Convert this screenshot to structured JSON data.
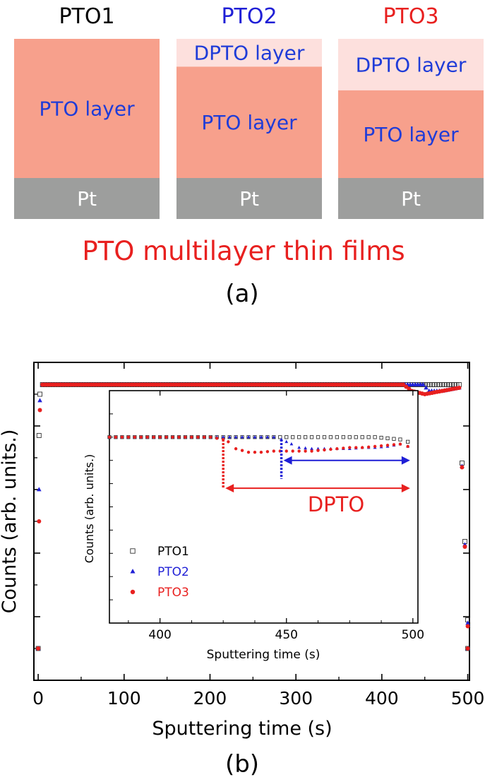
{
  "panel_a": {
    "samples": [
      {
        "title": "PTO1",
        "title_color": "#000000",
        "dpto_label": "",
        "pto_label": "PTO layer",
        "pt_label": "Pt",
        "dpto_fraction": 0.0
      },
      {
        "title": "PTO2",
        "title_color": "#1f1fd6",
        "dpto_label": "DPTO layer",
        "pto_label": "PTO layer",
        "pt_label": "Pt",
        "dpto_fraction": 0.2
      },
      {
        "title": "PTO3",
        "title_color": "#e8201f",
        "dpto_label": "DPTO layer",
        "pto_label": "PTO layer",
        "pt_label": "Pt",
        "dpto_fraction": 0.37
      }
    ],
    "caption": "PTO multilayer thin films",
    "label": "(a)",
    "colors": {
      "pto": "#f7a08c",
      "dpto": "#fde0dd",
      "pt": "#9d9e9d",
      "label_blue": "#1f3cd8",
      "caption_red": "#e8201f"
    }
  },
  "panel_b": {
    "label": "(b)",
    "legend": [
      {
        "name": "PTO1",
        "color": "#333333",
        "text_color": "#000000",
        "marker": "open-square"
      },
      {
        "name": "PTO2",
        "color": "#1f1fd6",
        "text_color": "#1f1fd6",
        "marker": "triangle"
      },
      {
        "name": "PTO3",
        "color": "#e8201f",
        "text_color": "#e8201f",
        "marker": "circle"
      }
    ],
    "annotation": {
      "text": "DPTO",
      "color": "#e8201f",
      "red_arrow_x": [
        425,
        500
      ],
      "blue_arrow_x": [
        448,
        500
      ]
    }
  },
  "chart_data": [
    {
      "type": "scatter",
      "title": "",
      "xlabel": "Sputtering time (s)",
      "ylabel": "Counts (arb. units.)",
      "xlim": [
        -5,
        502
      ],
      "ylim": [
        0,
        100
      ],
      "xticks": [
        "0",
        "100",
        "200",
        "300",
        "400",
        "500"
      ],
      "series": [
        {
          "name": "PTO1",
          "x": [
            0,
            1,
            2,
            5,
            50,
            100,
            200,
            300,
            400,
            430,
            450,
            470,
            490,
            500,
            500
          ],
          "y": [
            10,
            77,
            90,
            93,
            93,
            93,
            93,
            93,
            93,
            93,
            93,
            93,
            93,
            19,
            10
          ]
        },
        {
          "name": "PTO2",
          "x": [
            0,
            1,
            2,
            5,
            50,
            100,
            200,
            300,
            400,
            430,
            448,
            455,
            470,
            490,
            500,
            500
          ],
          "y": [
            10,
            60,
            88,
            93,
            93,
            93,
            93,
            93,
            93,
            93,
            93,
            91,
            91,
            92,
            18,
            10
          ]
        },
        {
          "name": "PTO3",
          "x": [
            0,
            1,
            2,
            5,
            50,
            100,
            200,
            300,
            400,
            420,
            425,
            435,
            450,
            470,
            490,
            500,
            500
          ],
          "y": [
            10,
            50,
            85,
            93,
            93,
            93,
            93,
            93,
            93,
            93,
            93,
            91,
            90,
            91,
            92,
            17,
            10
          ]
        }
      ]
    },
    {
      "type": "scatter",
      "title": "",
      "xlabel": "Sputtering time (s)",
      "ylabel": "Counts (arb. units.)",
      "xlim": [
        380,
        502
      ],
      "ylim": [
        0,
        100
      ],
      "xticks": [
        "400",
        "450",
        "500"
      ],
      "series": [
        {
          "name": "PTO1",
          "x": [
            380,
            385,
            390,
            395,
            400,
            405,
            410,
            415,
            420,
            425,
            430,
            435,
            440,
            445,
            450,
            455,
            460,
            465,
            470,
            475,
            480,
            485,
            490,
            495,
            498
          ],
          "y": [
            80,
            80,
            80,
            80,
            80,
            80,
            80,
            80,
            80,
            80,
            80,
            80,
            80,
            80,
            80,
            80,
            80,
            80,
            80,
            80,
            80,
            80,
            79.5,
            79,
            78
          ]
        },
        {
          "name": "PTO2",
          "x": [
            380,
            385,
            390,
            395,
            400,
            405,
            410,
            415,
            420,
            425,
            430,
            435,
            440,
            445,
            448,
            450,
            452,
            455,
            460,
            465,
            470,
            475,
            480,
            485,
            490,
            495,
            498
          ],
          "y": [
            80,
            80,
            80,
            80,
            80,
            80,
            80,
            80,
            80,
            80,
            80,
            80,
            80,
            80,
            79,
            78,
            77,
            75.5,
            75,
            75,
            75,
            75,
            75.5,
            75.5,
            76,
            77,
            76
          ]
        },
        {
          "name": "PTO3",
          "x": [
            380,
            385,
            390,
            395,
            400,
            405,
            410,
            415,
            420,
            425,
            427,
            430,
            435,
            440,
            445,
            450,
            455,
            460,
            465,
            470,
            475,
            480,
            485,
            490,
            495,
            498
          ],
          "y": [
            80,
            80,
            80,
            80,
            80,
            80,
            80,
            80,
            80,
            79,
            78,
            75,
            73.5,
            73.5,
            74,
            74,
            74,
            74,
            74.5,
            75,
            75.5,
            75.5,
            76,
            76.5,
            77,
            76
          ]
        }
      ]
    }
  ]
}
